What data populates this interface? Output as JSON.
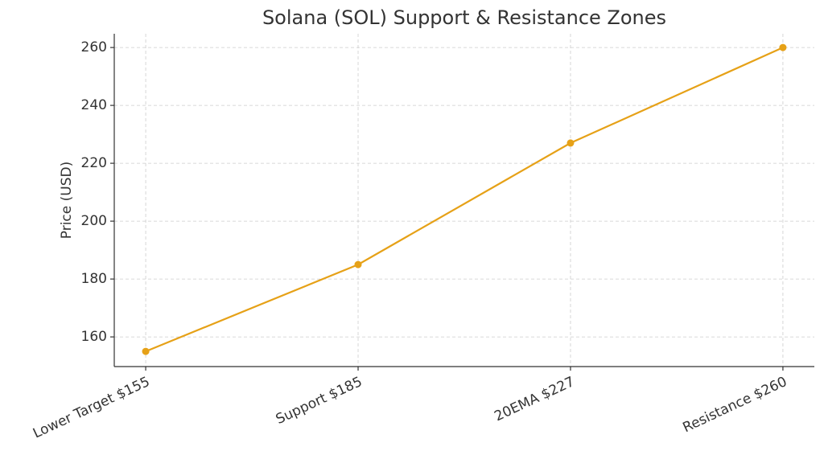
{
  "chart_data": {
    "type": "line",
    "title": "Solana (SOL) Support & Resistance Zones",
    "ylabel": "Price (USD)",
    "categories": [
      "Lower Target $155",
      "Support $185",
      "20EMA $227",
      "Resistance $260"
    ],
    "values": [
      155,
      185,
      227,
      260
    ],
    "color": "#e6a117",
    "ylim": [
      149.75,
      264.75
    ],
    "yticks": [
      160,
      180,
      200,
      220,
      240,
      260
    ],
    "grid": true
  }
}
